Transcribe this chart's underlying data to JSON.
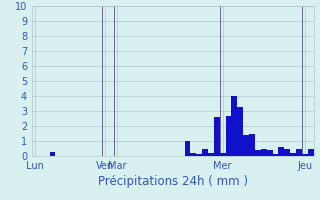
{
  "title": "Précipitations 24h ( mm )",
  "ylim": [
    0,
    10
  ],
  "yticks": [
    0,
    1,
    2,
    3,
    4,
    5,
    6,
    7,
    8,
    9,
    10
  ],
  "bar_color": "#1111cc",
  "background_color": "#d8f0f0",
  "grid_color": "#b0c8c8",
  "num_bars": 48,
  "values": [
    0,
    0,
    0,
    0.3,
    0,
    0,
    0,
    0,
    0,
    0,
    0,
    0,
    0,
    0,
    0,
    0,
    0,
    0,
    0,
    0,
    0,
    0,
    0,
    0,
    0,
    0,
    1.0,
    0.2,
    0.15,
    0.5,
    0.2,
    2.6,
    0.2,
    2.7,
    4.0,
    3.3,
    1.4,
    1.5,
    0.4,
    0.5,
    0.4,
    0.15,
    0.6,
    0.5,
    0.2,
    0.5,
    0.15,
    0.5
  ],
  "day_labels": [
    "Lun",
    "Ven",
    "Mar",
    "Mer",
    "Jeu"
  ],
  "day_positions": [
    0,
    12,
    14,
    32,
    46
  ],
  "vline_positions": [
    12,
    14,
    32,
    46
  ],
  "title_color": "#3355bb",
  "tick_color": "#3355bb",
  "vline_color": "#666688",
  "title_fontsize": 8.5,
  "tick_fontsize": 7
}
